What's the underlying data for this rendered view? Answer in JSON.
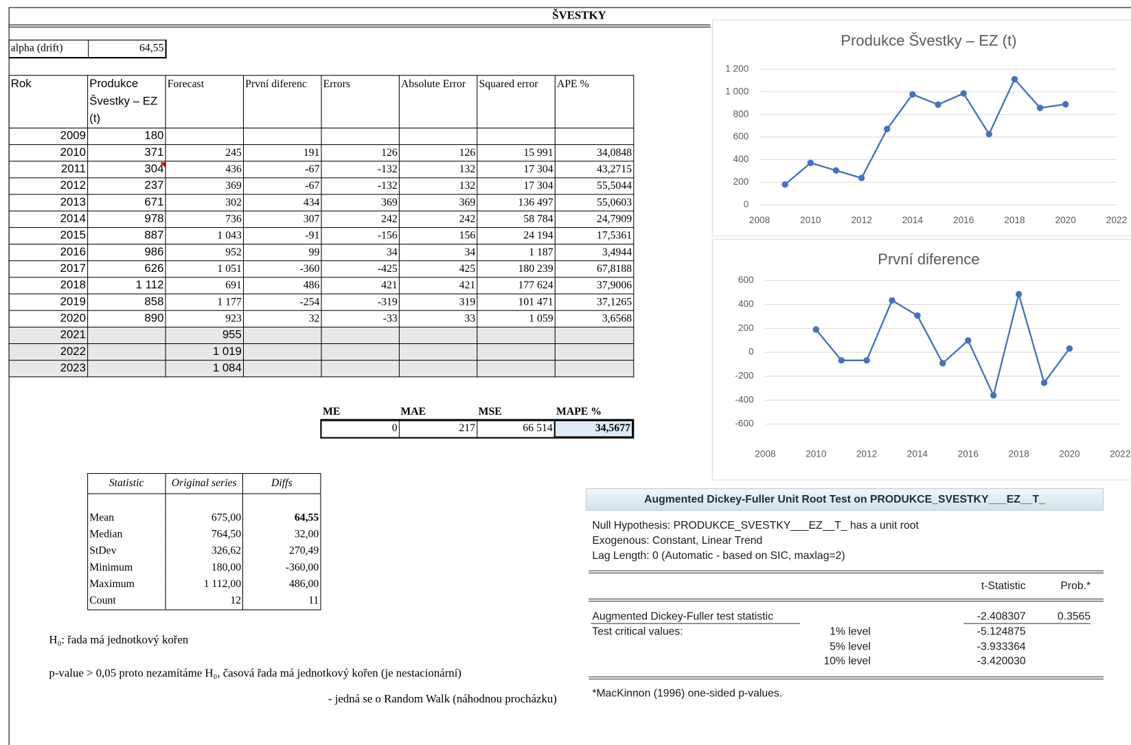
{
  "sheet": {
    "title": "ŠVESTKY",
    "alpha": {
      "label": "alpha (drift)",
      "value": "64,55"
    },
    "table": {
      "columns": [
        "Rok",
        "Produkce Švestky – EZ (t)",
        "Forecast",
        "První diferenc",
        "Errors",
        "Absolute Error",
        "Squared error",
        "APE %"
      ],
      "rows": [
        [
          "2009",
          "180",
          null,
          null,
          null,
          null,
          null,
          null
        ],
        [
          "2010",
          "371",
          "245",
          "191",
          "126",
          "126",
          "15 991",
          "34,0848"
        ],
        [
          "2011",
          "304",
          "436",
          "-67",
          "-132",
          "132",
          "17 304",
          "43,2715"
        ],
        [
          "2012",
          "237",
          "369",
          "-67",
          "-132",
          "132",
          "17 304",
          "55,5044"
        ],
        [
          "2013",
          "671",
          "302",
          "434",
          "369",
          "369",
          "136 497",
          "55,0603"
        ],
        [
          "2014",
          "978",
          "736",
          "307",
          "242",
          "242",
          "58 784",
          "24,7909"
        ],
        [
          "2015",
          "887",
          "1 043",
          "-91",
          "-156",
          "156",
          "24 194",
          "17,5361"
        ],
        [
          "2016",
          "986",
          "952",
          "99",
          "34",
          "34",
          "1 187",
          "3,4944"
        ],
        [
          "2017",
          "626",
          "1 051",
          "-360",
          "-425",
          "425",
          "180 239",
          "67,8188"
        ],
        [
          "2018",
          "1 112",
          "691",
          "486",
          "421",
          "421",
          "177 624",
          "37,9006"
        ],
        [
          "2019",
          "858",
          "1 177",
          "-254",
          "-319",
          "319",
          "101 471",
          "37,1265"
        ],
        [
          "2020",
          "890",
          "923",
          "32",
          "-33",
          "33",
          "1 059",
          "3,6568"
        ],
        [
          "2021",
          null,
          "955",
          null,
          null,
          null,
          null,
          null
        ],
        [
          "2022",
          null,
          "1 019",
          null,
          null,
          null,
          null,
          null
        ],
        [
          "2023",
          null,
          "1 084",
          null,
          null,
          null,
          null,
          null
        ]
      ]
    },
    "summary": {
      "columns": [
        "ME",
        "MAE",
        "MSE",
        "MAPE %"
      ],
      "values": [
        "0",
        "217",
        "66 514",
        "34,5677"
      ]
    },
    "stats": {
      "columns": [
        "Statistic",
        "Original series",
        "Diffs"
      ],
      "rows": [
        [
          "Mean",
          "675,00",
          "64,55"
        ],
        [
          "Median",
          "764,50",
          "32,00"
        ],
        [
          "StDev",
          "326,62",
          "270,49"
        ],
        [
          "Minimum",
          "180,00",
          "-360,00"
        ],
        [
          "Maximum",
          "1 112,00",
          "486,00"
        ],
        [
          "Count",
          "12",
          "11"
        ]
      ]
    },
    "notes": [
      "H₀: řada má jednotkový kořen",
      "p-value > 0,05 proto nezamítáme H₀, časová řada má jednotkový kořen (je nestacionární)",
      "- jedná se o Random Walk (náhodnou procházku)"
    ]
  },
  "adf": {
    "title": "Augmented Dickey-Fuller Unit Root Test on PRODUKCE_SVESTKY___EZ__T_",
    "lines": [
      "Null Hypothesis: PRODUKCE_SVESTKY___EZ__T_ has a unit root",
      "Exogenous: Constant, Linear Trend",
      "Lag Length: 0 (Automatic - based on SIC, maxlag=2)"
    ],
    "columns": [
      "t-Statistic",
      "Prob.*"
    ],
    "statistic": {
      "label": "Augmented Dickey-Fuller test statistic",
      "t": "-2.408307",
      "prob": "0.3565"
    },
    "critical": {
      "label": "Test critical values:",
      "levels": [
        {
          "level": "1% level",
          "value": "-5.124875"
        },
        {
          "level": "5% level",
          "value": "-3.933364"
        },
        {
          "level": "10% level",
          "value": "-3.420030"
        }
      ]
    },
    "footnote": "*MacKinnon (1996) one-sided p-values."
  },
  "chart_data": [
    {
      "type": "line",
      "title": "Produkce Švestky – EZ (t)",
      "color": "#4472c4",
      "grid": true,
      "x": [
        2009,
        2010,
        2011,
        2012,
        2013,
        2014,
        2015,
        2016,
        2017,
        2018,
        2019,
        2020
      ],
      "values": [
        180,
        371,
        304,
        237,
        671,
        978,
        887,
        986,
        626,
        1112,
        858,
        890
      ],
      "xlim": [
        2008,
        2022
      ],
      "xticks": [
        2008,
        2010,
        2012,
        2014,
        2016,
        2018,
        2020,
        2022
      ],
      "ylim": [
        0,
        1200
      ],
      "yticks": [
        0,
        200,
        400,
        600,
        800,
        {
          "value": 1000,
          "label": "1 000"
        },
        {
          "value": 1200,
          "label": "1 200"
        }
      ]
    },
    {
      "type": "line",
      "title": "První diference",
      "color": "#4472c4",
      "grid": true,
      "x": [
        2010,
        2011,
        2012,
        2013,
        2014,
        2015,
        2016,
        2017,
        2018,
        2019,
        2020
      ],
      "values": [
        191,
        -67,
        -67,
        434,
        307,
        -91,
        99,
        -360,
        486,
        -254,
        32
      ],
      "xlim": [
        2008,
        2022
      ],
      "xticks": [
        2008,
        2010,
        2012,
        2014,
        2016,
        2018,
        2020,
        2022
      ],
      "ylim": [
        -600,
        600
      ],
      "yticks": [
        -600,
        -400,
        -200,
        0,
        200,
        400,
        600
      ]
    }
  ]
}
